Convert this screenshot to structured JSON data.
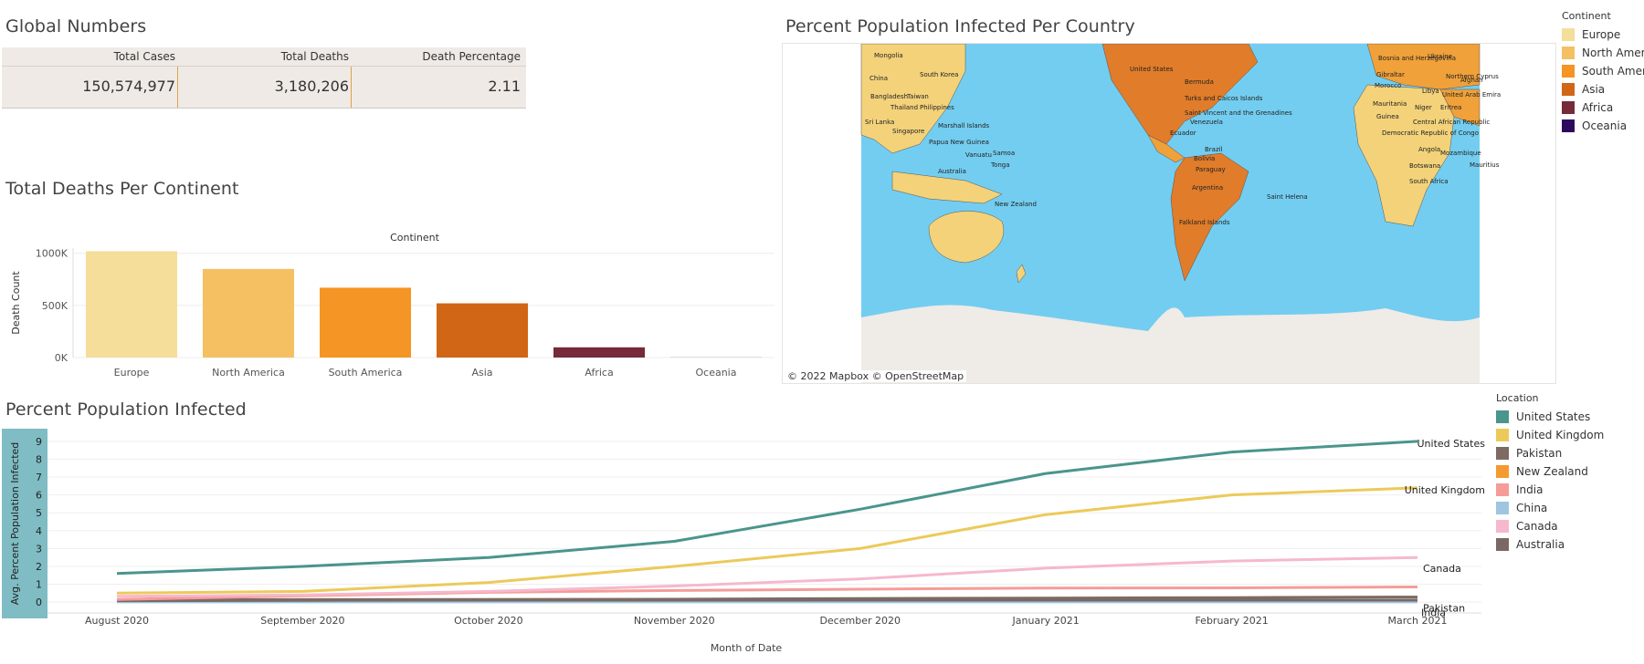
{
  "global": {
    "title": "Global Numbers",
    "headers": [
      "Total Cases",
      "Total Deaths",
      "Death Percentage"
    ],
    "values": [
      "150,574,977",
      "3,180,206",
      "2.11"
    ]
  },
  "deaths": {
    "title": "Total Deaths Per Continent"
  },
  "map": {
    "title": "Percent Population Infected Per Country",
    "credit": "© 2022 Mapbox  © OpenStreetMap",
    "ocean_color": "#73cdf0",
    "land_colors": [
      "#f3d27a",
      "#f0a13a",
      "#e07c2a"
    ],
    "labels": [
      "Mongolia",
      "China",
      "South Korea",
      "Bangladesh",
      "Taiwan",
      "Thailand",
      "Philippines",
      "Sri Lanka",
      "Singapore",
      "Papua New Guinea",
      "Australia",
      "Vanuatu",
      "Samoa",
      "Tonga",
      "New Zealand",
      "Marshall Islands",
      "United States",
      "Bermuda",
      "Turks and Caicos Islands",
      "Saint Vincent and the Grenadines",
      "Venezuela",
      "Ecuador",
      "Brazil",
      "Bolivia",
      "Paraguay",
      "Argentina",
      "Falkland Islands",
      "Saint Helena",
      "Gibraltar",
      "Morocco",
      "Libya",
      "Mauritania",
      "Niger",
      "Eritrea",
      "United Arab Emira",
      "Central African Republic",
      "Democratic Republic of Congo",
      "Angola",
      "Mozambique",
      "Botswana",
      "Mauritius",
      "South Africa",
      "Northern Cyprus",
      "Ukraine",
      "Bosnia and Herzegovina",
      "Guinea",
      "Afghan"
    ]
  },
  "continent_legend": {
    "title": "Continent",
    "items": [
      {
        "label": "Europe",
        "color": "#f5dd9a"
      },
      {
        "label": "North Ameri",
        "color": "#f4c062"
      },
      {
        "label": "South Ameri",
        "color": "#f49525"
      },
      {
        "label": "Asia",
        "color": "#d06616"
      },
      {
        "label": "Africa",
        "color": "#762a3a"
      },
      {
        "label": "Oceania",
        "color": "#2e0a5e"
      }
    ]
  },
  "infected": {
    "title": "Percent Population Infected"
  },
  "location_legend": {
    "title": "Location",
    "items": [
      {
        "label": "United States",
        "color": "#4a958d"
      },
      {
        "label": "United Kingdom",
        "color": "#ecca5a"
      },
      {
        "label": "Pakistan",
        "color": "#7d6a62"
      },
      {
        "label": "New Zealand",
        "color": "#f59a30"
      },
      {
        "label": "India",
        "color": "#f59c98"
      },
      {
        "label": "China",
        "color": "#9ec6e0"
      },
      {
        "label": "Canada",
        "color": "#f6b8cc"
      },
      {
        "label": "Australia",
        "color": "#7a6866"
      }
    ]
  },
  "chart_data": [
    {
      "type": "bar",
      "title": "Total Deaths Per Continent",
      "legend_title": "Continent",
      "categories": [
        "Europe",
        "North America",
        "South America",
        "Asia",
        "Africa",
        "Oceania"
      ],
      "values": [
        1020000,
        850000,
        670000,
        520000,
        98000,
        1000
      ],
      "colors": [
        "#f5dd9a",
        "#f4c062",
        "#f49525",
        "#d06616",
        "#762a3a",
        "#2e0a5e"
      ],
      "xlabel": "",
      "ylabel": "Death Count",
      "ylim": [
        0,
        1050000
      ],
      "yticks": [
        0,
        500000,
        1000000
      ],
      "ytick_labels": [
        "0K",
        "500K",
        "1000K"
      ],
      "header": "Continent"
    },
    {
      "type": "line",
      "title": "Percent Population Infected",
      "categories": [
        "August 2020",
        "September 2020",
        "October 2020",
        "November 2020",
        "December 2020",
        "January 2021",
        "February 2021",
        "March 2021"
      ],
      "xlabel": "Month of Date",
      "ylabel": "Avg. Percent Population Infected",
      "ylim": [
        -0.3,
        9.3
      ],
      "yticks": [
        0,
        1,
        2,
        3,
        4,
        5,
        6,
        7,
        8,
        9
      ],
      "series": [
        {
          "name": "United States",
          "color": "#4a958d",
          "values": [
            1.6,
            2.0,
            2.5,
            3.4,
            5.2,
            7.2,
            8.4,
            9.0
          ]
        },
        {
          "name": "United Kingdom",
          "color": "#ecca5a",
          "values": [
            0.5,
            0.6,
            1.1,
            2.0,
            3.0,
            4.9,
            6.0,
            6.4
          ]
        },
        {
          "name": "Canada",
          "color": "#f6b8cc",
          "values": [
            0.33,
            0.4,
            0.6,
            0.9,
            1.3,
            1.9,
            2.3,
            2.5
          ]
        },
        {
          "name": "India",
          "color": "#f59c98",
          "values": [
            0.15,
            0.35,
            0.55,
            0.65,
            0.72,
            0.78,
            0.8,
            0.85
          ]
        },
        {
          "name": "Pakistan",
          "color": "#7d6a62",
          "values": [
            0.13,
            0.14,
            0.15,
            0.16,
            0.2,
            0.22,
            0.25,
            0.28
          ]
        },
        {
          "name": "Australia",
          "color": "#7a6866",
          "values": [
            0.08,
            0.1,
            0.11,
            0.11,
            0.11,
            0.11,
            0.11,
            0.11
          ]
        },
        {
          "name": "China",
          "color": "#9ec6e0",
          "values": [
            0.01,
            0.01,
            0.01,
            0.01,
            0.01,
            0.01,
            0.01,
            0.01
          ]
        },
        {
          "name": "New Zealand",
          "color": "#f59a30",
          "values": [
            0.03,
            0.03,
            0.04,
            0.04,
            0.04,
            0.05,
            0.05,
            0.05
          ]
        }
      ],
      "end_labels": [
        "United States",
        "United Kingdom",
        "Canada",
        "India",
        "Pakistan"
      ]
    }
  ]
}
